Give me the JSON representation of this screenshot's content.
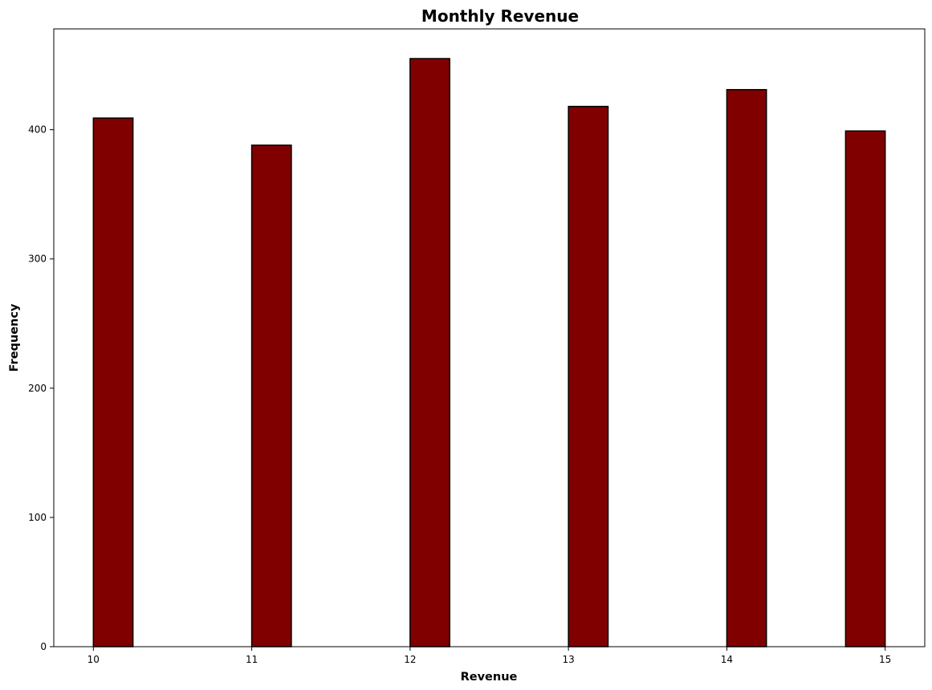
{
  "chart_data": {
    "type": "bar",
    "title": "Monthly Revenue",
    "xlabel": "Revenue",
    "ylabel": "Frequency",
    "bins": [
      {
        "start": 10.0,
        "end": 10.25,
        "count": 409
      },
      {
        "start": 10.25,
        "end": 10.5,
        "count": 0
      },
      {
        "start": 10.5,
        "end": 10.75,
        "count": 0
      },
      {
        "start": 10.75,
        "end": 11.0,
        "count": 0
      },
      {
        "start": 11.0,
        "end": 11.25,
        "count": 388
      },
      {
        "start": 11.25,
        "end": 11.5,
        "count": 0
      },
      {
        "start": 11.5,
        "end": 11.75,
        "count": 0
      },
      {
        "start": 11.75,
        "end": 12.0,
        "count": 0
      },
      {
        "start": 12.0,
        "end": 12.25,
        "count": 455
      },
      {
        "start": 12.25,
        "end": 12.5,
        "count": 0
      },
      {
        "start": 12.5,
        "end": 12.75,
        "count": 0
      },
      {
        "start": 12.75,
        "end": 13.0,
        "count": 0
      },
      {
        "start": 13.0,
        "end": 13.25,
        "count": 418
      },
      {
        "start": 13.25,
        "end": 13.5,
        "count": 0
      },
      {
        "start": 13.5,
        "end": 13.75,
        "count": 0
      },
      {
        "start": 13.75,
        "end": 14.0,
        "count": 0
      },
      {
        "start": 14.0,
        "end": 14.25,
        "count": 431
      },
      {
        "start": 14.25,
        "end": 14.5,
        "count": 0
      },
      {
        "start": 14.5,
        "end": 14.75,
        "count": 0
      },
      {
        "start": 14.75,
        "end": 15.0,
        "count": 399
      }
    ],
    "xlim": [
      9.75,
      15.25
    ],
    "ylim": [
      0,
      478
    ],
    "xticks": [
      10,
      11,
      12,
      13,
      14,
      15
    ],
    "yticks": [
      0,
      100,
      200,
      300,
      400
    ],
    "grid": false,
    "bar_color": "#800000",
    "edge_color": "#000000"
  }
}
